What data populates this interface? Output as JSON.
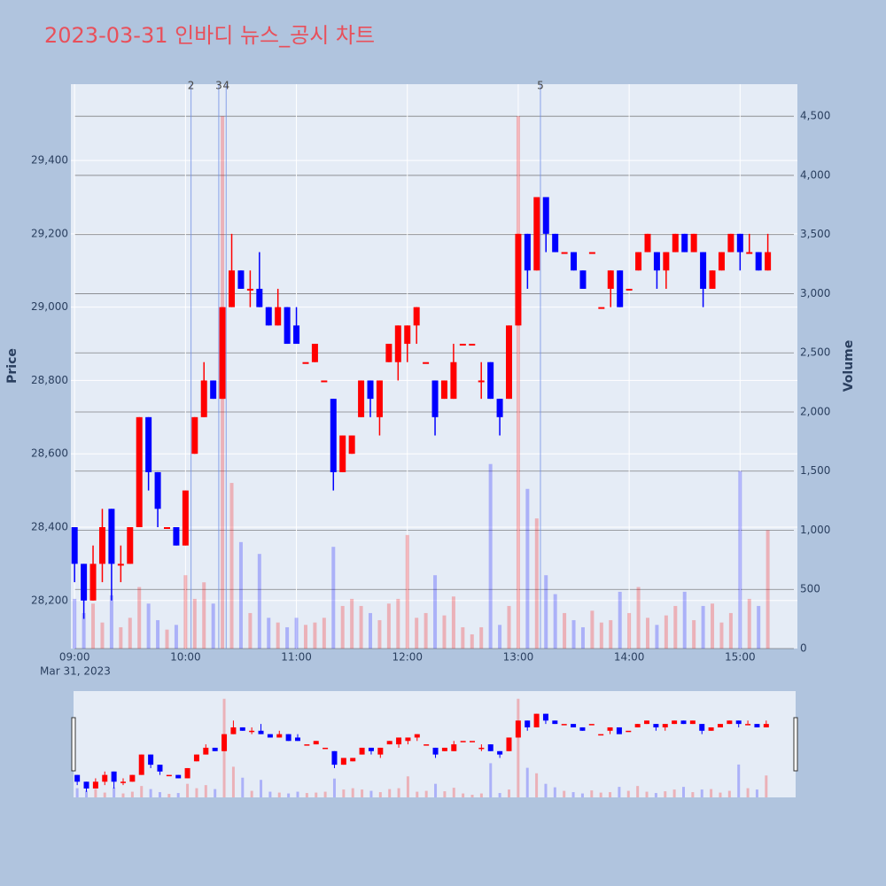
{
  "chart_data": {
    "type": "candlestick",
    "title": "2023-03-31 인바디 뉴스_공시 차트",
    "y_label": "Price",
    "y2_label": "Volume",
    "x_date_label": "Mar 31, 2023",
    "increasing_color": "#ff0000",
    "decreasing_color": "#0000ff",
    "x": [
      "09:00",
      "09:05",
      "09:10",
      "09:15",
      "09:20",
      "09:25",
      "09:30",
      "09:35",
      "09:40",
      "09:45",
      "09:50",
      "09:55",
      "10:00",
      "10:05",
      "10:10",
      "10:15",
      "10:20",
      "10:25",
      "10:30",
      "10:35",
      "10:40",
      "10:45",
      "10:50",
      "10:55",
      "11:00",
      "11:05",
      "11:10",
      "11:15",
      "11:20",
      "11:25",
      "11:30",
      "11:35",
      "11:40",
      "11:45",
      "11:50",
      "11:55",
      "12:00",
      "12:05",
      "12:10",
      "12:15",
      "12:20",
      "12:25",
      "12:30",
      "12:35",
      "12:40",
      "12:45",
      "12:50",
      "12:55",
      "13:00",
      "13:05",
      "13:10",
      "13:15",
      "13:20",
      "13:25",
      "13:30",
      "13:35",
      "13:40",
      "13:45",
      "13:50",
      "13:55",
      "14:00",
      "14:05",
      "14:10",
      "14:15",
      "14:20",
      "14:25",
      "14:30",
      "14:35",
      "14:40",
      "14:45",
      "14:50",
      "14:55",
      "15:00",
      "15:05",
      "15:10",
      "15:15"
    ],
    "open": [
      28400,
      28300,
      28200,
      28300,
      28450,
      28300,
      28300,
      28400,
      28700,
      28550,
      28400,
      28400,
      28350,
      28600,
      28700,
      28800,
      28750,
      29000,
      29100,
      29050,
      29050,
      29000,
      28950,
      29000,
      28950,
      28850,
      28850,
      28800,
      28750,
      28550,
      28600,
      28700,
      28800,
      28700,
      28850,
      28850,
      28900,
      28950,
      28850,
      28800,
      28750,
      28750,
      28900,
      28900,
      28800,
      28850,
      28750,
      28750,
      28950,
      29200,
      29100,
      29300,
      29200,
      29150,
      29150,
      29100,
      29150,
      29000,
      29050,
      29100,
      29050,
      29100,
      29150,
      29150,
      29100,
      29150,
      29200,
      29150,
      29150,
      29050,
      29100,
      29150,
      29200,
      29150,
      29150,
      29100
    ],
    "high": [
      28400,
      28300,
      28350,
      28450,
      28450,
      28350,
      28400,
      28700,
      28700,
      28550,
      28400,
      28400,
      28500,
      28700,
      28850,
      28800,
      29000,
      29200,
      29100,
      29100,
      29150,
      29000,
      29050,
      29000,
      29000,
      28850,
      28900,
      28800,
      28750,
      28650,
      28650,
      28800,
      28800,
      28800,
      28900,
      28950,
      28950,
      29000,
      28850,
      28800,
      28800,
      28900,
      28900,
      28900,
      28850,
      28850,
      28750,
      28950,
      29200,
      29200,
      29300,
      29300,
      29200,
      29150,
      29150,
      29100,
      29150,
      29000,
      29100,
      29100,
      29050,
      29150,
      29200,
      29150,
      29150,
      29200,
      29200,
      29200,
      29150,
      29100,
      29150,
      29200,
      29200,
      29200,
      29150,
      29200
    ],
    "low": [
      28250,
      28150,
      28200,
      28250,
      28200,
      28250,
      28300,
      28400,
      28500,
      28400,
      28400,
      28350,
      28350,
      28600,
      28700,
      28750,
      28750,
      29000,
      29050,
      29000,
      29000,
      28950,
      28950,
      28900,
      28900,
      28850,
      28850,
      28800,
      28500,
      28550,
      28600,
      28700,
      28700,
      28650,
      28850,
      28800,
      28850,
      28900,
      28850,
      28650,
      28750,
      28750,
      28900,
      28900,
      28750,
      28750,
      28650,
      28750,
      28950,
      29050,
      29100,
      29150,
      29150,
      29150,
      29100,
      29050,
      29150,
      29000,
      29000,
      29000,
      29050,
      29100,
      29150,
      29050,
      29050,
      29150,
      29150,
      29150,
      29000,
      29050,
      29100,
      29150,
      29100,
      29150,
      29100,
      29100
    ],
    "close": [
      28300,
      28200,
      28300,
      28400,
      28300,
      28300,
      28400,
      28700,
      28550,
      28450,
      28400,
      28350,
      28500,
      28700,
      28800,
      28750,
      29000,
      29100,
      29050,
      29050,
      29000,
      28950,
      29000,
      28900,
      28900,
      28850,
      28900,
      28800,
      28550,
      28650,
      28650,
      28800,
      28750,
      28800,
      28900,
      28950,
      28950,
      29000,
      28850,
      28700,
      28800,
      28850,
      28900,
      28900,
      28800,
      28750,
      28700,
      28950,
      29200,
      29100,
      29300,
      29200,
      29150,
      29150,
      29100,
      29050,
      29150,
      29000,
      29100,
      29000,
      29050,
      29150,
      29200,
      29100,
      29150,
      29200,
      29150,
      29200,
      29050,
      29100,
      29150,
      29200,
      29150,
      29150,
      29100,
      29150
    ],
    "volume": [
      420,
      300,
      380,
      220,
      450,
      180,
      260,
      520,
      380,
      240,
      160,
      200,
      620,
      420,
      560,
      380,
      4500,
      1400,
      900,
      300,
      800,
      260,
      220,
      180,
      260,
      200,
      220,
      260,
      860,
      360,
      420,
      360,
      300,
      240,
      380,
      420,
      960,
      260,
      300,
      620,
      280,
      440,
      180,
      120,
      180,
      1560,
      200,
      360,
      4500,
      1350,
      1100,
      620,
      460,
      300,
      240,
      180,
      320,
      220,
      240,
      480,
      300,
      520,
      260,
      200,
      280,
      360,
      480,
      240,
      360,
      380,
      220,
      300,
      1500,
      420,
      360,
      1000
    ],
    "events": [
      {
        "x": "10:03",
        "label": "2"
      },
      {
        "x": "10:18",
        "label": "3"
      },
      {
        "x": "10:22",
        "label": "4"
      },
      {
        "x": "13:12",
        "label": "5"
      }
    ],
    "xlim": [
      "08:58",
      "15:31"
    ],
    "xticks": [
      "09:00",
      "10:00",
      "11:00",
      "12:00",
      "13:00",
      "14:00",
      "15:00"
    ],
    "ylim": [
      28069,
      29608
    ],
    "yticks": [
      {
        "value": 28200,
        "label": "28,200"
      },
      {
        "value": 28400,
        "label": "28,400"
      },
      {
        "value": 28600,
        "label": "28,600"
      },
      {
        "value": 28800,
        "label": "28,800"
      },
      {
        "value": 29000,
        "label": "29,000"
      },
      {
        "value": 29200,
        "label": "29,200"
      },
      {
        "value": 29400,
        "label": "29,400"
      }
    ],
    "y2lim": [
      0,
      4771
    ],
    "y2ticks": [
      0,
      500,
      {
        "value": 1000,
        "label": "1,000"
      },
      {
        "value": 1500,
        "label": "1,500"
      },
      {
        "value": 2000,
        "label": "2,000"
      },
      {
        "value": 2500,
        "label": "2,500"
      },
      {
        "value": 3000,
        "label": "3,000"
      },
      {
        "value": 3500,
        "label": "3,500"
      },
      {
        "value": 4000,
        "label": "4,000"
      },
      {
        "value": 4500,
        "label": "4,500"
      }
    ],
    "grid": true
  }
}
